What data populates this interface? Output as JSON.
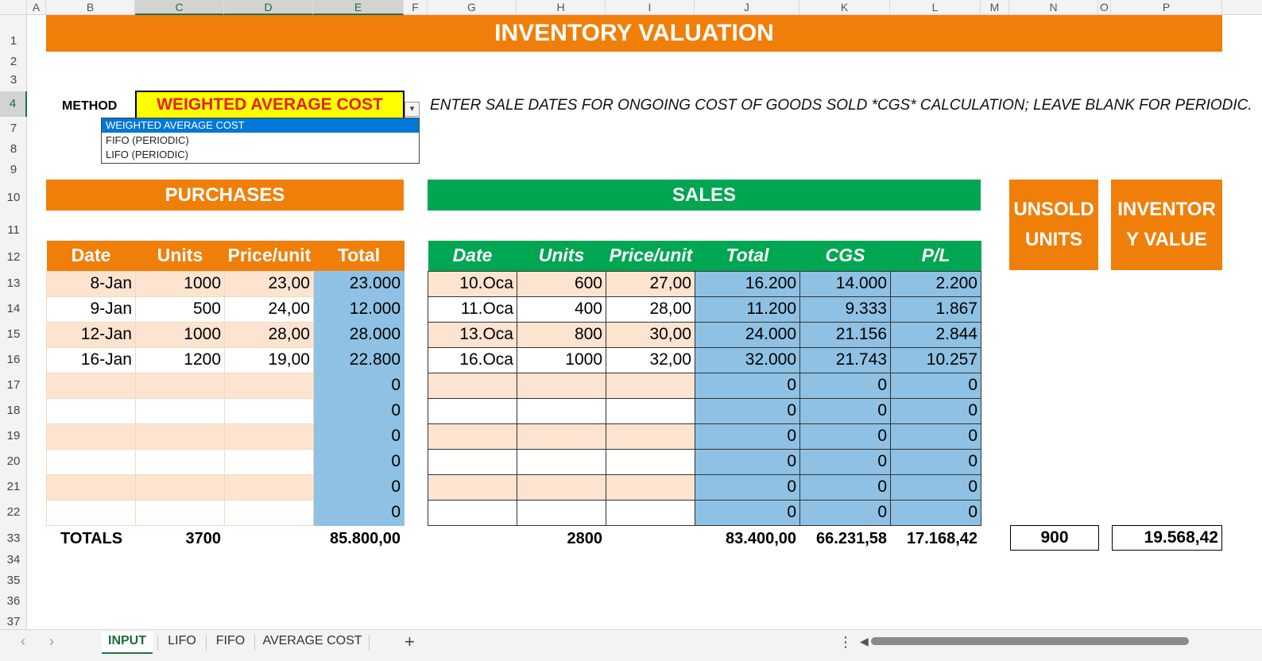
{
  "columns": [
    "A",
    "B",
    "C",
    "D",
    "E",
    "F",
    "G",
    "H",
    "I",
    "J",
    "K",
    "L",
    "M",
    "N",
    "O",
    "P"
  ],
  "rows": [
    "1",
    "2",
    "3",
    "4",
    "7",
    "8",
    "9",
    "10",
    "11",
    "12",
    "13",
    "14",
    "15",
    "16",
    "17",
    "18",
    "19",
    "20",
    "21",
    "22",
    "33",
    "34",
    "35",
    "36",
    "37"
  ],
  "title": "INVENTORY VALUATION",
  "method": {
    "label": "METHOD",
    "value": "WEIGHTED AVERAGE COST",
    "options": [
      "WEIGHTED AVERAGE COST",
      "FIFO (PERIODIC)",
      "LIFO (PERIODIC)"
    ],
    "note": "ENTER SALE DATES FOR ONGOING COST OF GOODS SOLD *CGS* CALCULATION; LEAVE BLANK FOR PERIODIC."
  },
  "purchases": {
    "title": "PURCHASES",
    "headers": [
      "Date",
      "Units",
      "Price/unit",
      "Total"
    ],
    "rows": [
      [
        "8-Jan",
        "1000",
        "23,00",
        "23.000"
      ],
      [
        "9-Jan",
        "500",
        "24,00",
        "12.000"
      ],
      [
        "12-Jan",
        "1000",
        "28,00",
        "28.000"
      ],
      [
        "16-Jan",
        "1200",
        "19,00",
        "22.800"
      ],
      [
        "",
        "",
        "",
        "0"
      ],
      [
        "",
        "",
        "",
        "0"
      ],
      [
        "",
        "",
        "",
        "0"
      ],
      [
        "",
        "",
        "",
        "0"
      ],
      [
        "",
        "",
        "",
        "0"
      ],
      [
        "",
        "",
        "",
        "0"
      ]
    ],
    "totals_label": "TOTALS",
    "total_units": "3700",
    "total_value": "85.800,00"
  },
  "sales": {
    "title": "SALES",
    "headers": [
      "Date",
      "Units",
      "Price/unit",
      "Total",
      "CGS",
      "P/L"
    ],
    "rows": [
      [
        "10.Oca",
        "600",
        "27,00",
        "16.200",
        "14.000",
        "2.200"
      ],
      [
        "11.Oca",
        "400",
        "28,00",
        "11.200",
        "9.333",
        "1.867"
      ],
      [
        "13.Oca",
        "800",
        "30,00",
        "24.000",
        "21.156",
        "2.844"
      ],
      [
        "16.Oca",
        "1000",
        "32,00",
        "32.000",
        "21.743",
        "10.257"
      ],
      [
        "",
        "",
        "",
        "0",
        "0",
        "0"
      ],
      [
        "",
        "",
        "",
        "0",
        "0",
        "0"
      ],
      [
        "",
        "",
        "",
        "0",
        "0",
        "0"
      ],
      [
        "",
        "",
        "",
        "0",
        "0",
        "0"
      ],
      [
        "",
        "",
        "",
        "0",
        "0",
        "0"
      ],
      [
        "",
        "",
        "",
        "0",
        "0",
        "0"
      ]
    ],
    "total_units": "2800",
    "total_value": "83.400,00",
    "total_cgs": "66.231,58",
    "total_pl": "17.168,42"
  },
  "unsold": {
    "label_line1": "UNSOLD",
    "label_line2": "UNITS",
    "value": "900"
  },
  "inventory": {
    "label_line1": "INVENTOR",
    "label_line2": "Y VALUE",
    "value": "19.568,42"
  },
  "sheet_tabs": [
    "INPUT",
    "LIFO",
    "FIFO",
    "AVERAGE COST"
  ],
  "add_sheet": "+",
  "menu": "⋮",
  "colors": {
    "orange": "#f07f0a",
    "green": "#00a651",
    "blue": "#8ec1e3",
    "peach": "#fce4d1",
    "yellow": "#ffff00"
  }
}
